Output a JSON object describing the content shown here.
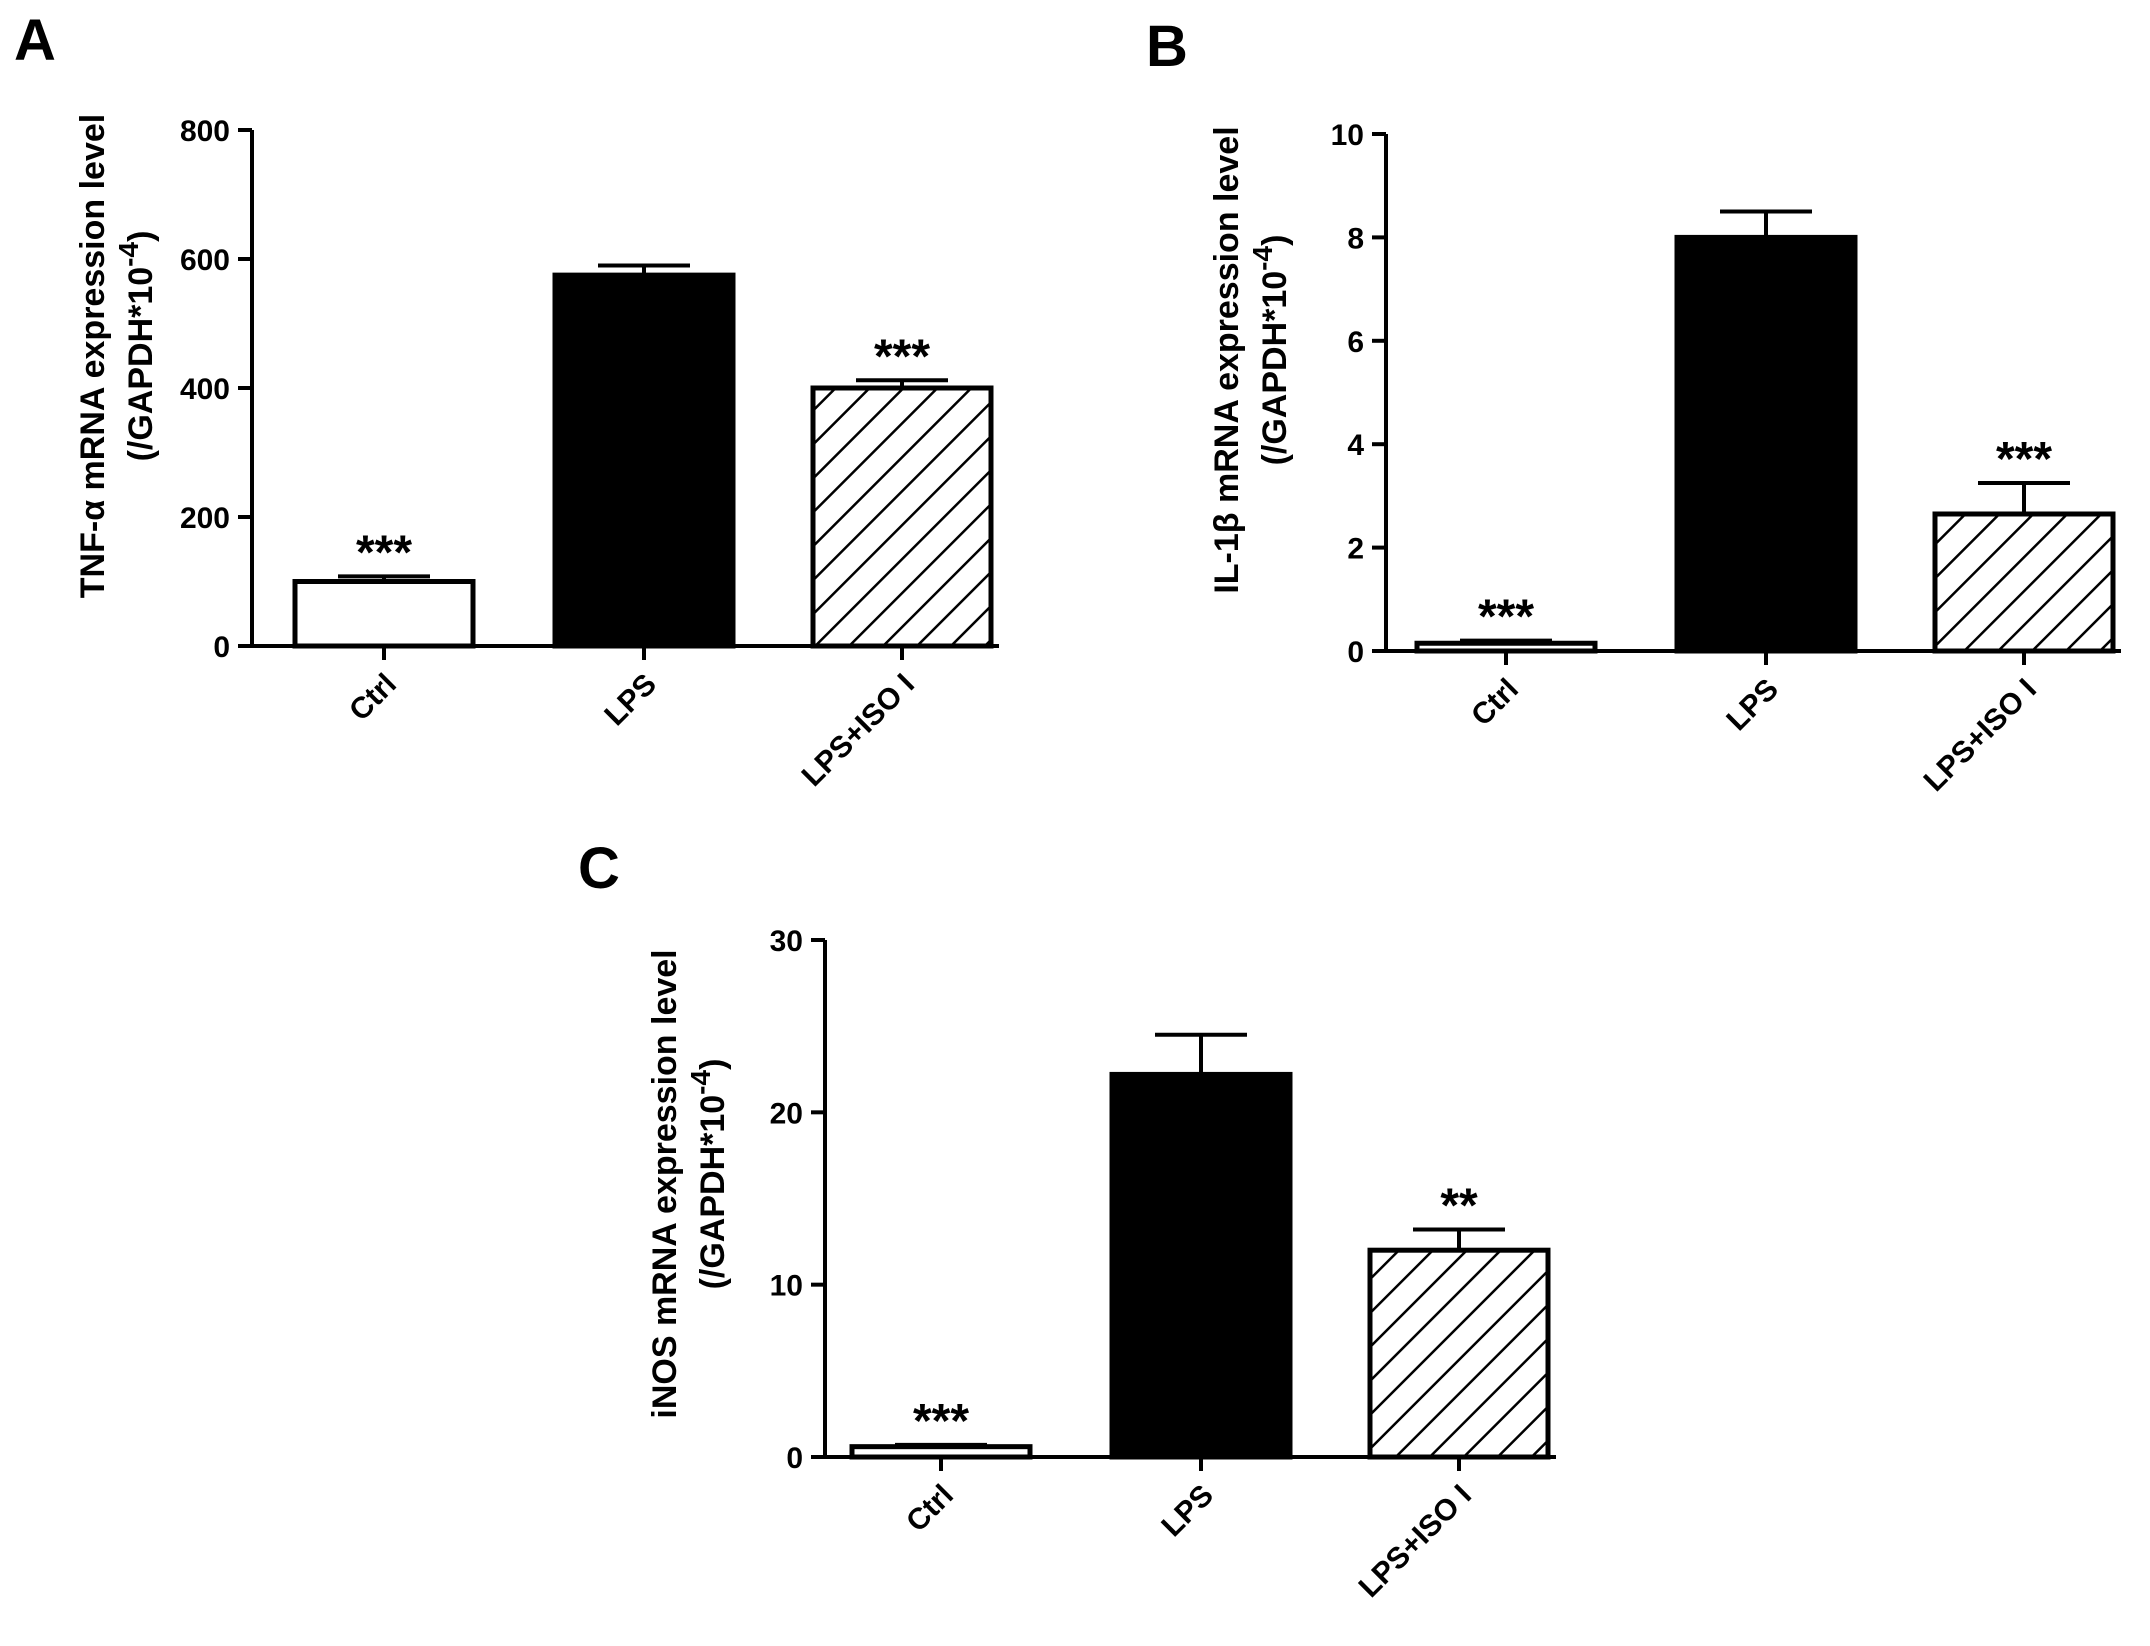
{
  "figure": {
    "panels": [
      {
        "letter": "A",
        "y_title_line1": "TNF-α mRNA expression level",
        "y_title_line2": "(/GAPDH*10",
        "y_title_exp": "-4",
        "y_title_close": ")"
      },
      {
        "letter": "B",
        "y_title_line1": "IL-1β mRNA expression level",
        "y_title_line2": "(/GAPDH*10",
        "y_title_exp": "-4",
        "y_title_close": ")"
      },
      {
        "letter": "C",
        "y_title_line1": "iNOS mRNA expression level",
        "y_title_line2": "(/GAPDH*10",
        "y_title_exp": "-4",
        "y_title_close": ")"
      }
    ]
  },
  "chart_data": [
    {
      "panel": "A",
      "type": "bar",
      "categories": [
        "Ctrl",
        "LPS",
        "LPS+ISO I"
      ],
      "values": [
        100,
        575,
        400
      ],
      "errors": [
        8,
        15,
        12
      ],
      "significance": [
        "***",
        "",
        "***"
      ],
      "fills": [
        "white",
        "black",
        "hatched"
      ],
      "yticks": [
        "0",
        "200",
        "400",
        "600",
        "800"
      ],
      "ylim": [
        0,
        800
      ],
      "ylabel": "TNF-α mRNA expression level (/GAPDH*10-4)",
      "xlabel": "",
      "grid": false
    },
    {
      "panel": "B",
      "type": "bar",
      "categories": [
        "Ctrl",
        "LPS",
        "LPS+ISO I"
      ],
      "values": [
        0.15,
        8.0,
        2.65
      ],
      "errors": [
        0.05,
        0.5,
        0.6
      ],
      "significance": [
        "***",
        "",
        "***"
      ],
      "fills": [
        "white",
        "black",
        "hatched"
      ],
      "yticks": [
        "0",
        "2",
        "4",
        "6",
        "8",
        "10"
      ],
      "ylim": [
        0,
        10
      ],
      "ylabel": "IL-1β mRNA expression level (/GAPDH*10-4)",
      "xlabel": "",
      "grid": false
    },
    {
      "panel": "C",
      "type": "bar",
      "categories": [
        "Ctrl",
        "LPS",
        "LPS+ISO I"
      ],
      "values": [
        0.6,
        22.2,
        12.0
      ],
      "errors": [
        0.1,
        2.3,
        1.2
      ],
      "significance": [
        "***",
        "",
        "**"
      ],
      "fills": [
        "white",
        "black",
        "hatched"
      ],
      "yticks": [
        "0",
        "10",
        "20",
        "30"
      ],
      "ylim": [
        0,
        30
      ],
      "ylabel": "iNOS mRNA expression level (/GAPDH*10-4)",
      "xlabel": "",
      "grid": false
    }
  ]
}
